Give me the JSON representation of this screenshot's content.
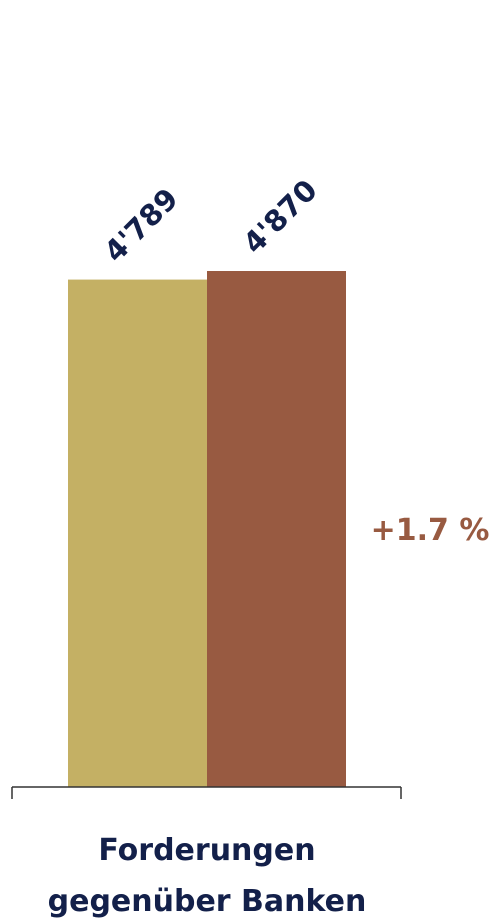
{
  "chart_data": {
    "type": "bar",
    "categories": [
      "Forderungen gegenüber Banken"
    ],
    "category_lines": [
      "Forderungen",
      "gegenüber Banken"
    ],
    "series": [
      {
        "color": "#c4b064",
        "values": [
          4789
        ]
      },
      {
        "color": "#985a41",
        "values": [
          4870
        ]
      }
    ],
    "data_labels": [
      "4'789",
      "4'870"
    ],
    "annotations": [
      {
        "text": "+1.7 %",
        "color": "#985a41"
      }
    ],
    "ylim": [
      0,
      4870
    ],
    "grid": false,
    "text_color": "#13204a",
    "axis_color": "#333333"
  }
}
